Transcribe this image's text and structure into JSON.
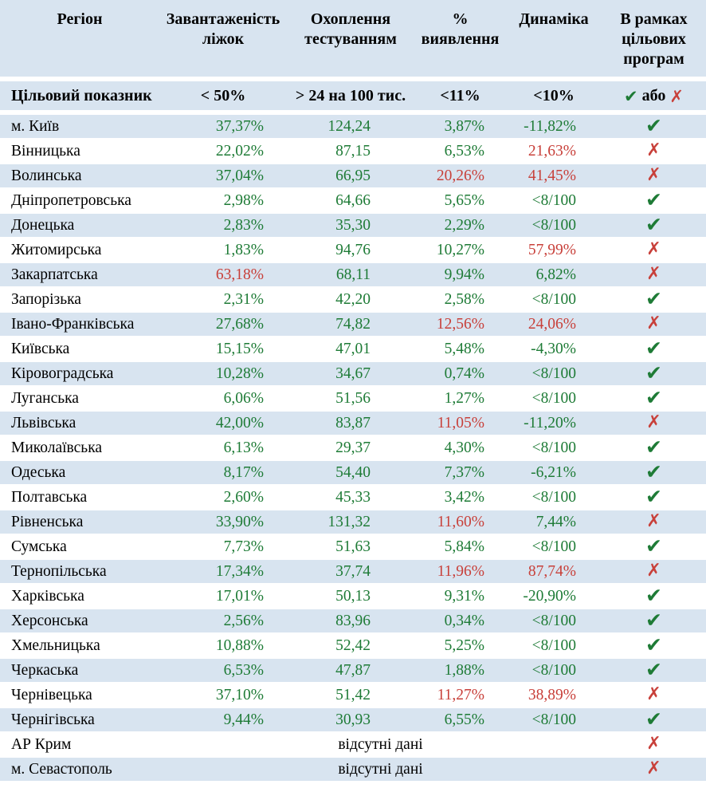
{
  "chart_data": {
    "type": "table",
    "title": "",
    "headers": {
      "region": "Регіон",
      "beds": "Завантаженість\nліжок",
      "testing": "Охоплення\nтестуванням",
      "detection": "%\nвиявлення",
      "dynamics": "Динаміка",
      "programs": "В рамках\nцільових\nпрограм"
    },
    "target_row": {
      "label": "Цільовий показник",
      "beds": "< 50%",
      "testing": "> 24 на 100 тис.",
      "detection": "<11%",
      "dynamics": "<10%",
      "programs_or": "або"
    },
    "no_data_text": "відсутні дані",
    "rows": [
      {
        "region": "м. Київ",
        "values": [
          "37,37%",
          "124,24",
          "3,87%",
          "-11,82%"
        ],
        "value_colors": [
          "green",
          "green",
          "green",
          "green"
        ],
        "pass": true
      },
      {
        "region": "Вінницька",
        "values": [
          "22,02%",
          "87,15",
          "6,53%",
          "21,63%"
        ],
        "value_colors": [
          "green",
          "green",
          "green",
          "red"
        ],
        "pass": false
      },
      {
        "region": "Волинська",
        "values": [
          "37,04%",
          "66,95",
          "20,26%",
          "41,45%"
        ],
        "value_colors": [
          "green",
          "green",
          "red",
          "red"
        ],
        "pass": false
      },
      {
        "region": "Дніпропетровська",
        "values": [
          "2,98%",
          "64,66",
          "5,65%",
          "<8/100"
        ],
        "value_colors": [
          "green",
          "green",
          "green",
          "green"
        ],
        "pass": true
      },
      {
        "region": "Донецька",
        "values": [
          "2,83%",
          "35,30",
          "2,29%",
          "<8/100"
        ],
        "value_colors": [
          "green",
          "green",
          "green",
          "green"
        ],
        "pass": true
      },
      {
        "region": "Житомирська",
        "values": [
          "1,83%",
          "94,76",
          "10,27%",
          "57,99%"
        ],
        "value_colors": [
          "green",
          "green",
          "green",
          "red"
        ],
        "pass": false
      },
      {
        "region": "Закарпатська",
        "values": [
          "63,18%",
          "68,11",
          "9,94%",
          "6,82%"
        ],
        "value_colors": [
          "red",
          "green",
          "green",
          "green"
        ],
        "pass": false
      },
      {
        "region": "Запорізька",
        "values": [
          "2,31%",
          "42,20",
          "2,58%",
          "<8/100"
        ],
        "value_colors": [
          "green",
          "green",
          "green",
          "green"
        ],
        "pass": true
      },
      {
        "region": "Івано-Франківська",
        "values": [
          "27,68%",
          "74,82",
          "12,56%",
          "24,06%"
        ],
        "value_colors": [
          "green",
          "green",
          "red",
          "red"
        ],
        "pass": false
      },
      {
        "region": "Київська",
        "values": [
          "15,15%",
          "47,01",
          "5,48%",
          "-4,30%"
        ],
        "value_colors": [
          "green",
          "green",
          "green",
          "green"
        ],
        "pass": true
      },
      {
        "region": "Кіровоградська",
        "values": [
          "10,28%",
          "34,67",
          "0,74%",
          "<8/100"
        ],
        "value_colors": [
          "green",
          "green",
          "green",
          "green"
        ],
        "pass": true
      },
      {
        "region": "Луганська",
        "values": [
          "6,06%",
          "51,56",
          "1,27%",
          "<8/100"
        ],
        "value_colors": [
          "green",
          "green",
          "green",
          "green"
        ],
        "pass": true
      },
      {
        "region": "Львівська",
        "values": [
          "42,00%",
          "83,87",
          "11,05%",
          "-11,20%"
        ],
        "value_colors": [
          "green",
          "green",
          "red",
          "green"
        ],
        "pass": false
      },
      {
        "region": "Миколаївська",
        "values": [
          "6,13%",
          "29,37",
          "4,30%",
          "<8/100"
        ],
        "value_colors": [
          "green",
          "green",
          "green",
          "green"
        ],
        "pass": true
      },
      {
        "region": "Одеська",
        "values": [
          "8,17%",
          "54,40",
          "7,37%",
          "-6,21%"
        ],
        "value_colors": [
          "green",
          "green",
          "green",
          "green"
        ],
        "pass": true
      },
      {
        "region": "Полтавська",
        "values": [
          "2,60%",
          "45,33",
          "3,42%",
          "<8/100"
        ],
        "value_colors": [
          "green",
          "green",
          "green",
          "green"
        ],
        "pass": true
      },
      {
        "region": "Рівненська",
        "values": [
          "33,90%",
          "131,32",
          "11,60%",
          "7,44%"
        ],
        "value_colors": [
          "green",
          "green",
          "red",
          "green"
        ],
        "pass": false
      },
      {
        "region": "Сумська",
        "values": [
          "7,73%",
          "51,63",
          "5,84%",
          "<8/100"
        ],
        "value_colors": [
          "green",
          "green",
          "green",
          "green"
        ],
        "pass": true
      },
      {
        "region": "Тернопільська",
        "values": [
          "17,34%",
          "37,74",
          "11,96%",
          "87,74%"
        ],
        "value_colors": [
          "green",
          "green",
          "red",
          "red"
        ],
        "pass": false
      },
      {
        "region": "Харківська",
        "values": [
          "17,01%",
          "50,13",
          "9,31%",
          "-20,90%"
        ],
        "value_colors": [
          "green",
          "green",
          "green",
          "green"
        ],
        "pass": true
      },
      {
        "region": "Херсонська",
        "values": [
          "2,56%",
          "83,96",
          "0,34%",
          "<8/100"
        ],
        "value_colors": [
          "green",
          "green",
          "green",
          "green"
        ],
        "pass": true
      },
      {
        "region": "Хмельницька",
        "values": [
          "10,88%",
          "52,42",
          "5,25%",
          "<8/100"
        ],
        "value_colors": [
          "green",
          "green",
          "green",
          "green"
        ],
        "pass": true
      },
      {
        "region": "Черкаська",
        "values": [
          "6,53%",
          "47,87",
          "1,88%",
          "<8/100"
        ],
        "value_colors": [
          "green",
          "green",
          "green",
          "green"
        ],
        "pass": true
      },
      {
        "region": "Чернівецька",
        "values": [
          "37,10%",
          "51,42",
          "11,27%",
          "38,89%"
        ],
        "value_colors": [
          "green",
          "green",
          "red",
          "red"
        ],
        "pass": false
      },
      {
        "region": "Чернігівська",
        "values": [
          "9,44%",
          "30,93",
          "6,55%",
          "<8/100"
        ],
        "value_colors": [
          "green",
          "green",
          "green",
          "green"
        ],
        "pass": true
      },
      {
        "region": "АР Крим",
        "no_data": true,
        "pass": false
      },
      {
        "region": "м. Севастополь",
        "no_data": true,
        "pass": false
      }
    ]
  },
  "icons": {
    "check": "✔",
    "cross": "✗"
  },
  "colors": {
    "green": "#1e7b36",
    "red": "#c8403a",
    "row_highlight": "#d8e4f0",
    "row_plain": "#ffffff",
    "text": "#000000"
  }
}
